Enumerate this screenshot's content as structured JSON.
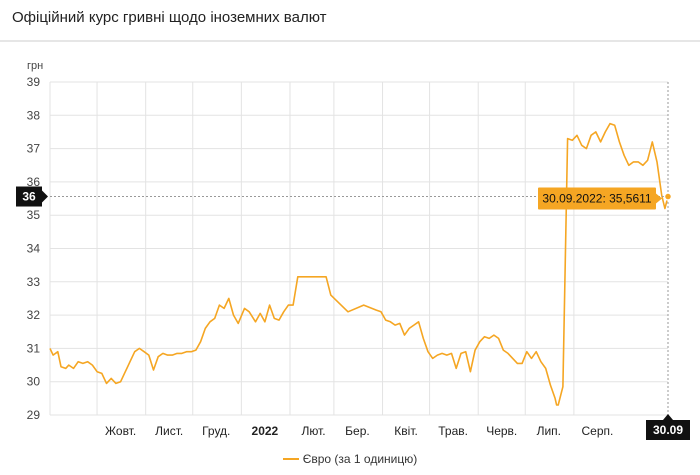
{
  "header": {
    "title": "Офіційний курс гривні щодо іноземних валют"
  },
  "colors": {
    "line": "#f5a623",
    "grid": "#e3e3e3",
    "axis_text": "#444444",
    "crosshair_label_bg": "#111111"
  },
  "chart_data": {
    "type": "line",
    "ylabel": "грн",
    "ylim": [
      29,
      39
    ],
    "yticks": [
      "29",
      "30",
      "31",
      "32",
      "33",
      "34",
      "35",
      "36",
      "37",
      "38",
      "39"
    ],
    "x_range": [
      "2021-09-01",
      "2022-09-30"
    ],
    "xticks": [
      {
        "label": "Жовт.",
        "date": "2021-10-01",
        "bold": false
      },
      {
        "label": "Лист.",
        "date": "2021-11-01",
        "bold": false
      },
      {
        "label": "Груд.",
        "date": "2021-12-01",
        "bold": false
      },
      {
        "label": "2022",
        "date": "2022-01-01",
        "bold": true
      },
      {
        "label": "Лют.",
        "date": "2022-02-01",
        "bold": false
      },
      {
        "label": "Бер.",
        "date": "2022-03-01",
        "bold": false
      },
      {
        "label": "Квіт.",
        "date": "2022-04-01",
        "bold": false
      },
      {
        "label": "Трав.",
        "date": "2022-05-01",
        "bold": false
      },
      {
        "label": "Черв.",
        "date": "2022-06-01",
        "bold": false
      },
      {
        "label": "Лип.",
        "date": "2022-07-01",
        "bold": false
      },
      {
        "label": "Серп.",
        "date": "2022-08-01",
        "bold": false
      }
    ],
    "grid": true,
    "legend_position": "bottom",
    "series": [
      {
        "name": "Євро (за 1 одиницю)",
        "x": [
          "2021-09-01",
          "2021-09-03",
          "2021-09-06",
          "2021-09-08",
          "2021-09-11",
          "2021-09-13",
          "2021-09-16",
          "2021-09-19",
          "2021-09-22",
          "2021-09-25",
          "2021-09-28",
          "2021-10-01",
          "2021-10-04",
          "2021-10-07",
          "2021-10-10",
          "2021-10-13",
          "2021-10-16",
          "2021-10-19",
          "2021-10-22",
          "2021-10-25",
          "2021-10-28",
          "2021-10-31",
          "2021-11-03",
          "2021-11-06",
          "2021-11-09",
          "2021-11-12",
          "2021-11-15",
          "2021-11-18",
          "2021-11-21",
          "2021-11-24",
          "2021-11-27",
          "2021-11-30",
          "2021-12-03",
          "2021-12-06",
          "2021-12-09",
          "2021-12-12",
          "2021-12-15",
          "2021-12-18",
          "2021-12-21",
          "2021-12-24",
          "2021-12-27",
          "2021-12-30",
          "2022-01-03",
          "2022-01-06",
          "2022-01-10",
          "2022-01-13",
          "2022-01-16",
          "2022-01-19",
          "2022-01-22",
          "2022-01-25",
          "2022-01-28",
          "2022-01-31",
          "2022-02-03",
          "2022-02-06",
          "2022-02-09",
          "2022-02-12",
          "2022-02-15",
          "2022-02-18",
          "2022-02-21",
          "2022-02-24",
          "2022-02-27",
          "2022-03-10",
          "2022-03-20",
          "2022-03-28",
          "2022-03-31",
          "2022-04-03",
          "2022-04-06",
          "2022-04-09",
          "2022-04-12",
          "2022-04-15",
          "2022-04-18",
          "2022-04-21",
          "2022-04-24",
          "2022-04-27",
          "2022-04-30",
          "2022-05-03",
          "2022-05-06",
          "2022-05-09",
          "2022-05-12",
          "2022-05-15",
          "2022-05-18",
          "2022-05-21",
          "2022-05-24",
          "2022-05-27",
          "2022-05-30",
          "2022-06-02",
          "2022-06-05",
          "2022-06-08",
          "2022-06-11",
          "2022-06-14",
          "2022-06-17",
          "2022-06-20",
          "2022-06-23",
          "2022-06-26",
          "2022-06-29",
          "2022-07-02",
          "2022-07-05",
          "2022-07-08",
          "2022-07-11",
          "2022-07-14",
          "2022-07-17",
          "2022-07-20",
          "2022-07-21",
          "2022-07-22",
          "2022-07-25",
          "2022-07-28",
          "2022-07-31",
          "2022-08-03",
          "2022-08-06",
          "2022-08-09",
          "2022-08-12",
          "2022-08-15",
          "2022-08-18",
          "2022-08-21",
          "2022-08-24",
          "2022-08-27",
          "2022-08-30",
          "2022-09-02",
          "2022-09-05",
          "2022-09-08",
          "2022-09-11",
          "2022-09-14",
          "2022-09-17",
          "2022-09-20",
          "2022-09-23",
          "2022-09-26",
          "2022-09-28",
          "2022-09-30"
        ],
        "y": [
          31.0,
          30.8,
          30.9,
          30.45,
          30.4,
          30.5,
          30.4,
          30.6,
          30.55,
          30.6,
          30.5,
          30.3,
          30.25,
          29.95,
          30.1,
          29.95,
          30.0,
          30.3,
          30.6,
          30.9,
          31.0,
          30.9,
          30.8,
          30.35,
          30.75,
          30.85,
          30.8,
          30.8,
          30.85,
          30.85,
          30.9,
          30.9,
          30.95,
          31.2,
          31.6,
          31.8,
          31.9,
          32.3,
          32.2,
          32.5,
          32.0,
          31.75,
          32.2,
          32.1,
          31.8,
          32.05,
          31.8,
          32.3,
          31.9,
          31.85,
          32.1,
          32.3,
          32.3,
          33.15,
          33.15,
          33.15,
          33.15,
          33.15,
          33.15,
          33.15,
          32.6,
          32.1,
          32.3,
          32.15,
          32.1,
          31.85,
          31.8,
          31.7,
          31.75,
          31.4,
          31.6,
          31.7,
          31.8,
          31.3,
          30.9,
          30.7,
          30.8,
          30.85,
          30.8,
          30.85,
          30.4,
          30.85,
          30.9,
          30.3,
          30.95,
          31.2,
          31.35,
          31.3,
          31.4,
          31.3,
          30.95,
          30.85,
          30.7,
          30.55,
          30.55,
          30.9,
          30.7,
          30.9,
          30.6,
          30.4,
          29.9,
          29.5,
          29.3,
          29.3,
          29.85,
          37.3,
          37.25,
          37.4,
          37.1,
          37.0,
          37.4,
          37.5,
          37.2,
          37.5,
          37.75,
          37.7,
          37.2,
          36.8,
          36.5,
          36.6,
          36.6,
          36.5,
          36.65,
          37.2,
          36.6,
          35.6,
          35.2,
          35.5611
        ]
      }
    ],
    "annotation": {
      "label": "30.09.2022: 35,5611",
      "date": "2022-09-30",
      "value": 35.5611,
      "y_marker_label": "36",
      "x_marker_label": "30.09"
    }
  }
}
